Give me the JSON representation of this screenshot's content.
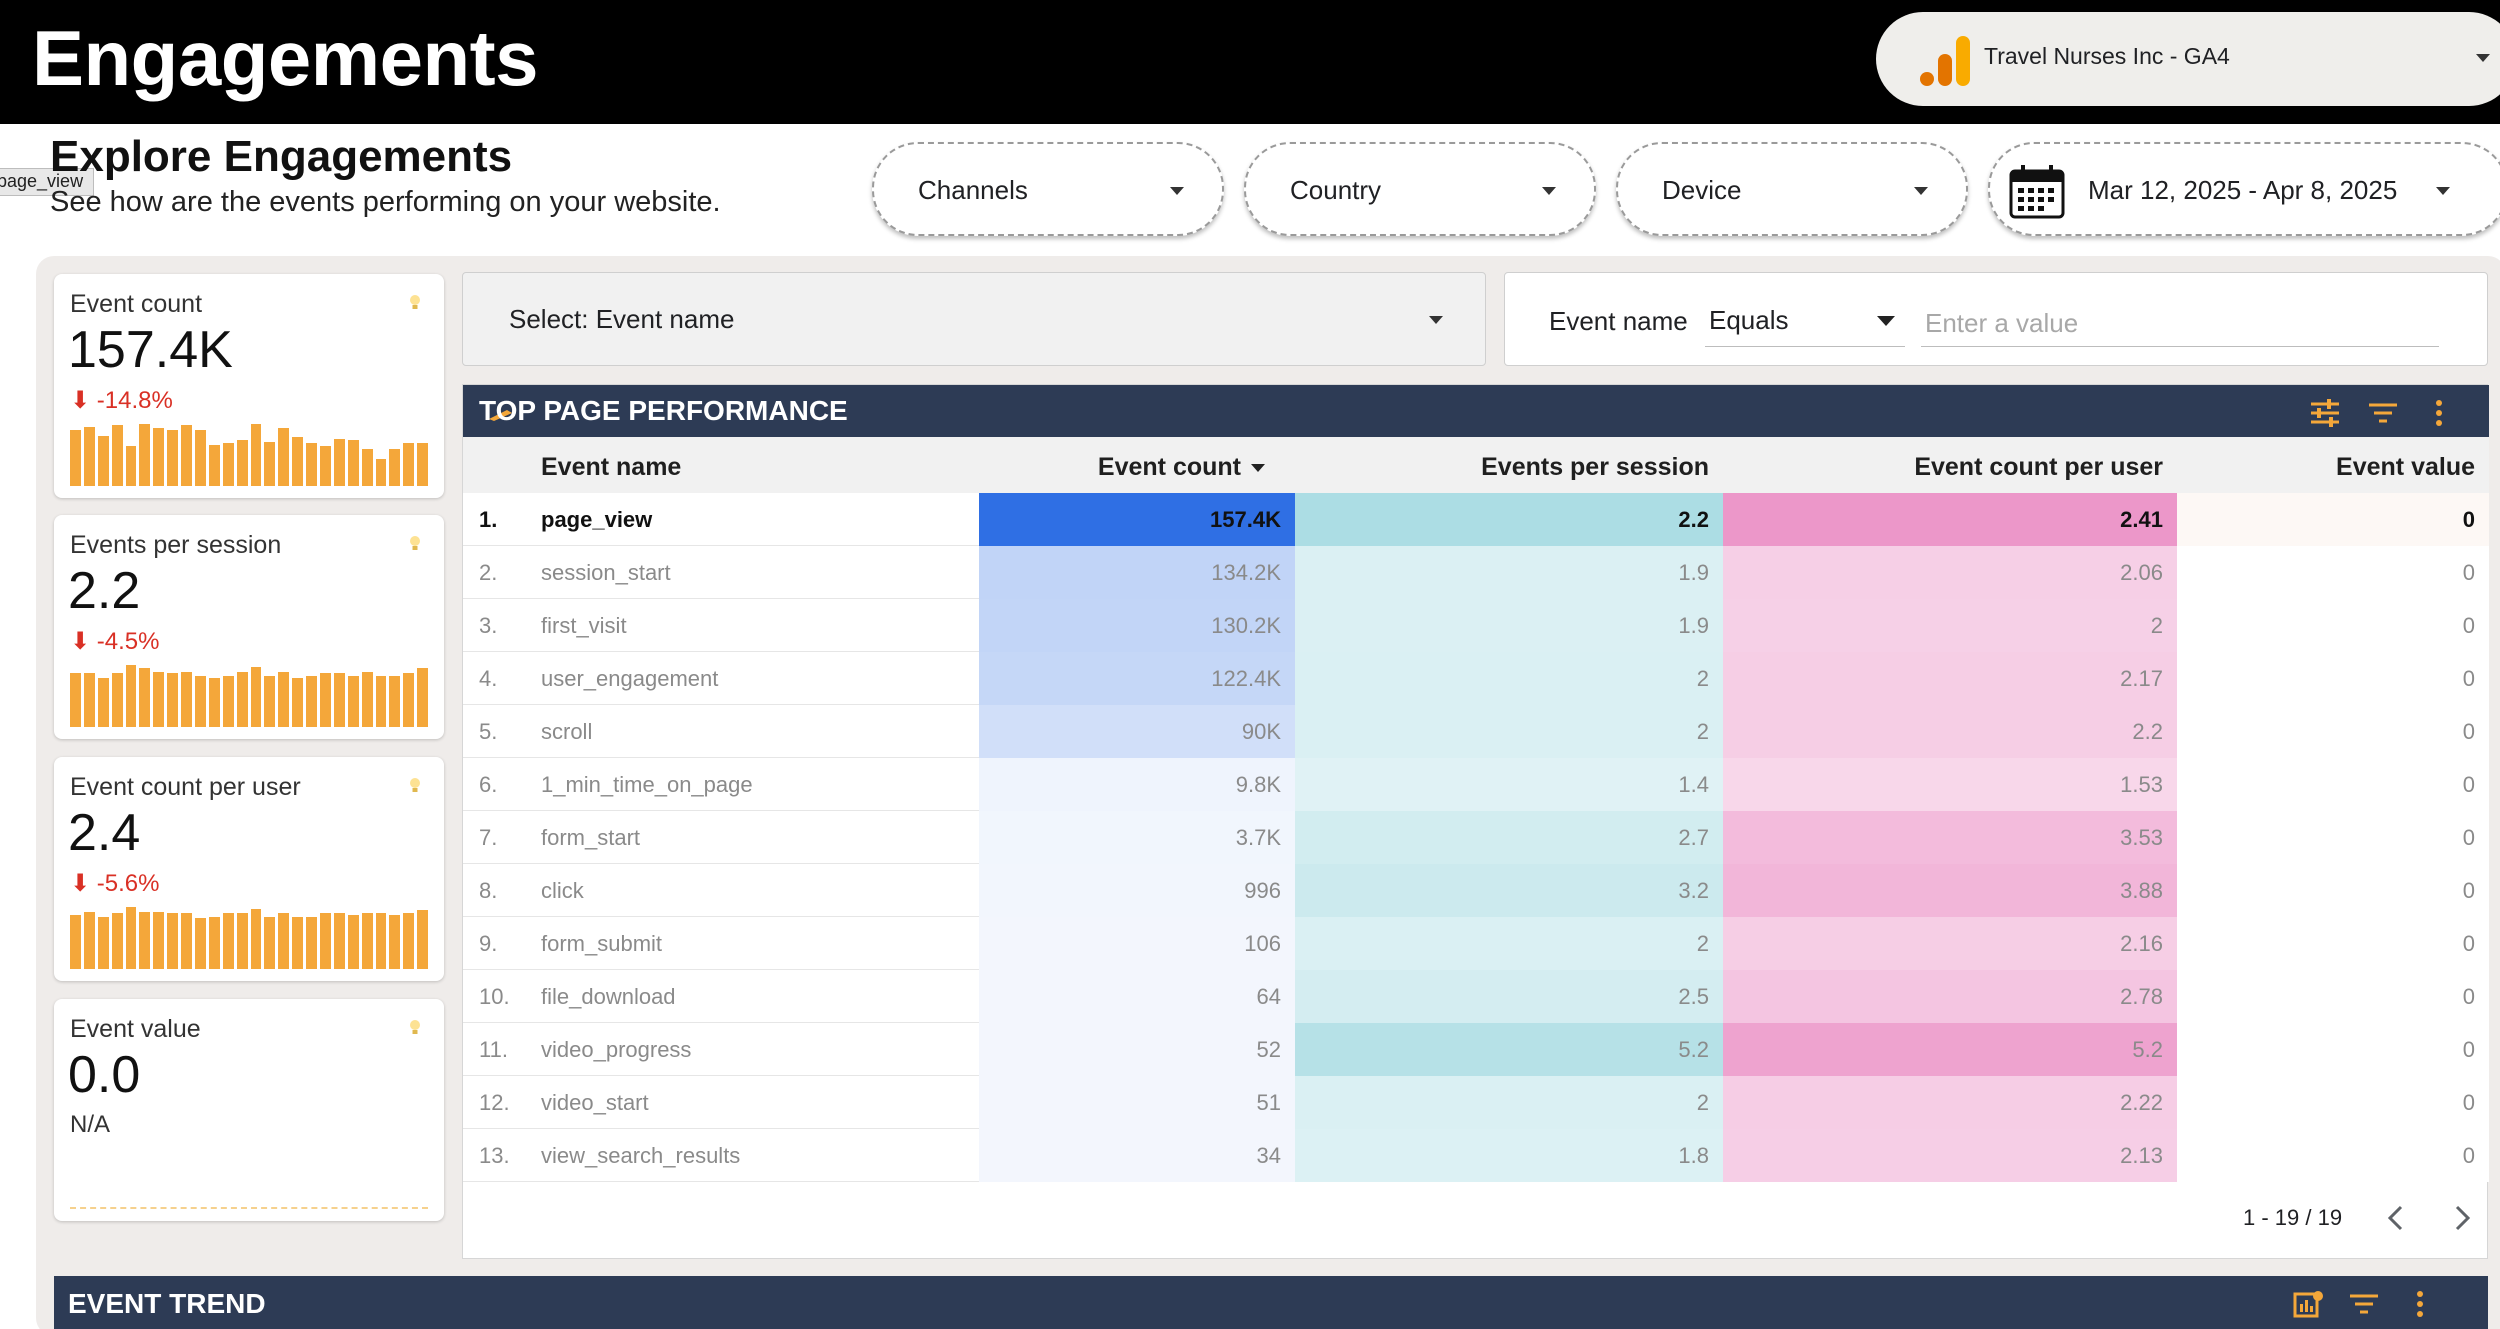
{
  "header": {
    "app_title": "Engagements",
    "account_name": "Travel Nurses Inc - GA4"
  },
  "section": {
    "title": "Explore Engagements",
    "subtitle": "See how are the events performing on your website.",
    "tooltip": "page_view"
  },
  "filters": {
    "channels": "Channels",
    "country": "Country",
    "device": "Device",
    "date_range": "Mar 12, 2025 - Apr 8, 2025"
  },
  "scorecards": [
    {
      "label": "Event count",
      "value": "157.4K",
      "delta": "-14.8%",
      "trend": [
        38,
        40,
        34,
        41,
        27,
        42,
        39,
        38,
        41,
        38,
        28,
        29,
        31,
        42,
        30,
        39,
        33,
        29,
        27,
        32,
        31,
        25,
        18,
        25,
        29,
        29
      ]
    },
    {
      "label": "Events per session",
      "value": "2.2",
      "delta": "-4.5%",
      "trend": [
        33,
        33,
        30,
        33,
        38,
        36,
        34,
        33,
        34,
        31,
        30,
        31,
        34,
        37,
        31,
        34,
        30,
        31,
        33,
        33,
        31,
        34,
        31,
        31,
        33,
        36
      ]
    },
    {
      "label": "Event count per user",
      "value": "2.4",
      "delta": "-5.6%",
      "trend": [
        34,
        36,
        33,
        35,
        39,
        36,
        36,
        35,
        35,
        32,
        33,
        35,
        35,
        38,
        33,
        35,
        33,
        33,
        35,
        35,
        34,
        35,
        35,
        34,
        35,
        37
      ]
    },
    {
      "label": "Event value",
      "value": "0.0",
      "na": "N/A"
    }
  ],
  "event_selector": {
    "label": "Select: Event name"
  },
  "event_filter": {
    "label": "Event name",
    "operator": "Equals",
    "placeholder": "Enter a value"
  },
  "table": {
    "title": "TOP PAGE PERFORMANCE",
    "columns": [
      "Event name",
      "Event count",
      "Events per session",
      "Event count per user",
      "Event value"
    ],
    "rows": [
      {
        "idx": "1.",
        "name": "page_view",
        "count": "157.4K",
        "per_session": "2.2",
        "per_user": "2.41",
        "value": "0"
      },
      {
        "idx": "2.",
        "name": "session_start",
        "count": "134.2K",
        "per_session": "1.9",
        "per_user": "2.06",
        "value": "0"
      },
      {
        "idx": "3.",
        "name": "first_visit",
        "count": "130.2K",
        "per_session": "1.9",
        "per_user": "2",
        "value": "0"
      },
      {
        "idx": "4.",
        "name": "user_engagement",
        "count": "122.4K",
        "per_session": "2",
        "per_user": "2.17",
        "value": "0"
      },
      {
        "idx": "5.",
        "name": "scroll",
        "count": "90K",
        "per_session": "2",
        "per_user": "2.2",
        "value": "0"
      },
      {
        "idx": "6.",
        "name": "1_min_time_on_page",
        "count": "9.8K",
        "per_session": "1.4",
        "per_user": "1.53",
        "value": "0"
      },
      {
        "idx": "7.",
        "name": "form_start",
        "count": "3.7K",
        "per_session": "2.7",
        "per_user": "3.53",
        "value": "0"
      },
      {
        "idx": "8.",
        "name": "click",
        "count": "996",
        "per_session": "3.2",
        "per_user": "3.88",
        "value": "0"
      },
      {
        "idx": "9.",
        "name": "form_submit",
        "count": "106",
        "per_session": "2",
        "per_user": "2.16",
        "value": "0"
      },
      {
        "idx": "10.",
        "name": "file_download",
        "count": "64",
        "per_session": "2.5",
        "per_user": "2.78",
        "value": "0"
      },
      {
        "idx": "11.",
        "name": "video_progress",
        "count": "52",
        "per_session": "5.2",
        "per_user": "5.2",
        "value": "0"
      },
      {
        "idx": "12.",
        "name": "video_start",
        "count": "51",
        "per_session": "2",
        "per_user": "2.22",
        "value": "0"
      },
      {
        "idx": "13.",
        "name": "view_search_results",
        "count": "34",
        "per_session": "1.8",
        "per_user": "2.13",
        "value": "0"
      }
    ],
    "heat": {
      "count": [
        1.0,
        0.85,
        0.83,
        0.78,
        0.57,
        0.06,
        0.02,
        0.01,
        0.0,
        0.0,
        0.0,
        0.0,
        0.0
      ],
      "per_session": [
        0.42,
        0.36,
        0.36,
        0.38,
        0.38,
        0.27,
        0.52,
        0.62,
        0.38,
        0.48,
        1.0,
        0.38,
        0.35
      ],
      "per_user": [
        0.46,
        0.4,
        0.39,
        0.42,
        0.42,
        0.29,
        0.68,
        0.75,
        0.42,
        0.54,
        1.0,
        0.43,
        0.41
      ]
    },
    "pagination": "1 - 19 / 19"
  },
  "trend": {
    "title": "EVENT TREND"
  },
  "colors": {
    "accent": "#f4a73a",
    "header_bg": "#2d3b55",
    "count_hi": "#2f6fe4",
    "session_hi": "#acdde4",
    "user_hi": "#ec97c9",
    "negative": "#d93025"
  }
}
